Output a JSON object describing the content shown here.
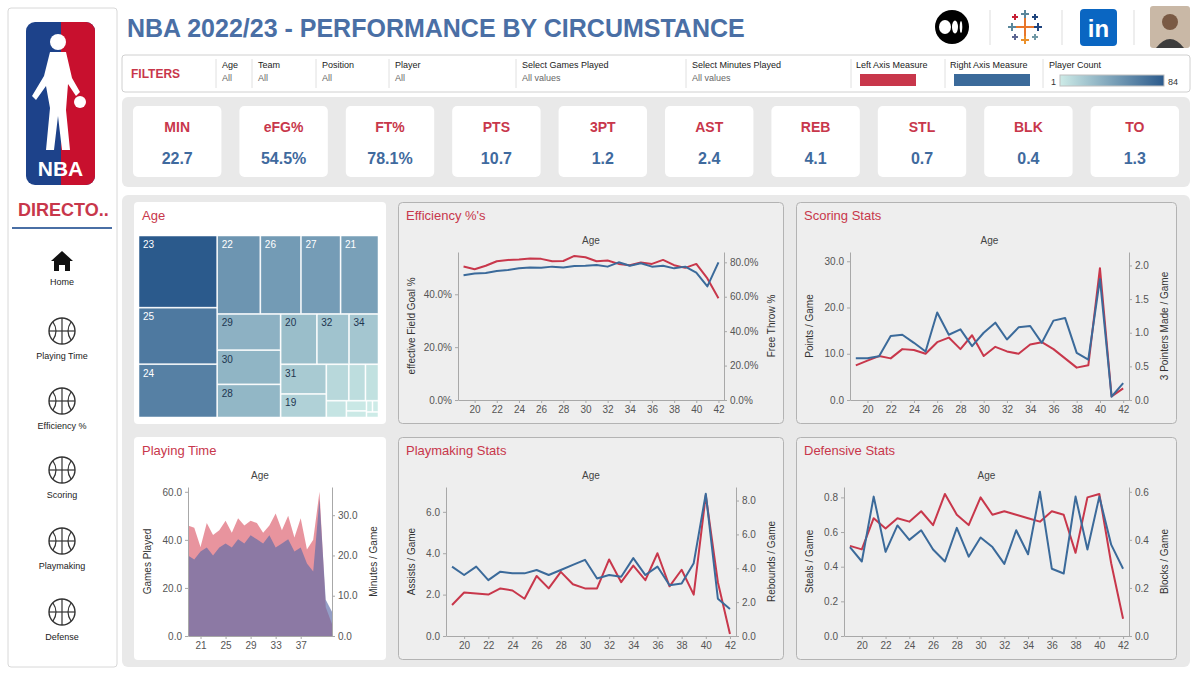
{
  "header": {
    "title": "NBA 2022/23 - PERFORMANCE BY CIRCUMSTANCE",
    "logo_text": "NBA",
    "linkedin": "in"
  },
  "sidebar": {
    "title": "DIRECTO..",
    "items": [
      "Home",
      "Playing Time",
      "Efficiency %",
      "Scoring",
      "Playmaking",
      "Defense"
    ]
  },
  "filters": {
    "label": "FILTERS",
    "items": [
      {
        "name": "Age",
        "value": "All"
      },
      {
        "name": "Team",
        "value": "All"
      },
      {
        "name": "Position",
        "value": "All"
      },
      {
        "name": "Player",
        "value": "All"
      },
      {
        "name": "Select Games Played",
        "value": "All values"
      },
      {
        "name": "Select Minutes Played",
        "value": "All values"
      }
    ],
    "measures": [
      {
        "name": "Left Axis Measure",
        "color": "#c8374b"
      },
      {
        "name": "Right Axis Measure",
        "color": "#3b6a9a"
      }
    ],
    "player_count": {
      "name": "Player Count",
      "range": [
        1,
        84
      ],
      "colors": [
        "#cdebe7",
        "#2b5a8c"
      ]
    }
  },
  "kpis": [
    {
      "label": "MIN",
      "value": "22.7"
    },
    {
      "label": "eFG%",
      "value": "54.5%"
    },
    {
      "label": "FT%",
      "value": "78.1%"
    },
    {
      "label": "PTS",
      "value": "10.7"
    },
    {
      "label": "3PT",
      "value": "1.2"
    },
    {
      "label": "AST",
      "value": "2.4"
    },
    {
      "label": "REB",
      "value": "4.1"
    },
    {
      "label": "STL",
      "value": "0.7"
    },
    {
      "label": "BLK",
      "value": "0.4"
    },
    {
      "label": "TO",
      "value": "1.3"
    }
  ],
  "chart_data": [
    {
      "type": "treemap",
      "title": "Age",
      "categories": [
        "23",
        "25",
        "24",
        "22",
        "26",
        "27",
        "21",
        "29",
        "30",
        "28",
        "20",
        "32",
        "34",
        "31",
        "19",
        null,
        null,
        null,
        null,
        null,
        null,
        null,
        null,
        null
      ],
      "values": [
        84,
        66,
        62,
        50,
        47,
        46,
        44,
        34,
        32,
        31,
        27,
        24,
        22,
        20,
        16,
        12,
        9,
        7,
        5,
        3,
        2,
        1,
        1,
        1
      ]
    },
    {
      "type": "line",
      "title": "Efficiency %'s",
      "x_label": "Age",
      "x": [
        19,
        20,
        21,
        22,
        23,
        24,
        25,
        26,
        27,
        28,
        29,
        30,
        31,
        32,
        33,
        34,
        35,
        36,
        37,
        38,
        39,
        40,
        41,
        42
      ],
      "xlim": [
        18.5,
        42.5
      ],
      "xticks": [
        20,
        22,
        24,
        26,
        28,
        30,
        32,
        34,
        36,
        38,
        40,
        42
      ],
      "ylim": [
        0,
        56
      ],
      "yticks": [
        {
          "value": 0,
          "label": "0.0%"
        },
        {
          "value": 20,
          "label": "20.0%"
        },
        {
          "value": 40,
          "label": "40.0%"
        }
      ],
      "y2lim": [
        0,
        86
      ],
      "y2ticks": [
        {
          "value": 0,
          "label": "0.0%"
        },
        {
          "value": 20,
          "label": "20.0%"
        },
        {
          "value": 40,
          "label": "40.0%"
        },
        {
          "value": 60,
          "label": "60.0%"
        },
        {
          "value": 80,
          "label": "80.0%"
        }
      ],
      "series": [
        {
          "name": "effective Field Goal %",
          "color": "#c8374b",
          "values": [
            50.5,
            49.5,
            50.8,
            52.5,
            53.0,
            53.2,
            53.5,
            53.4,
            52.5,
            52.6,
            54.5,
            54.0,
            52.5,
            52.8,
            51.5,
            51.0,
            52.0,
            51.5,
            53.0,
            51.0,
            50.0,
            51.5,
            46.0,
            38.5
          ]
        },
        {
          "name": "Free Throw %",
          "color": "#3b6a9a",
          "axis": "y2",
          "values": [
            72.5,
            73.5,
            73.8,
            75.0,
            75.5,
            76.5,
            77.0,
            76.8,
            77.5,
            77.0,
            77.8,
            78.0,
            78.5,
            77.5,
            80.0,
            78.0,
            79.5,
            77.5,
            78.0,
            76.5,
            77.5,
            74.0,
            66.0,
            80.0
          ]
        }
      ]
    },
    {
      "type": "line",
      "title": "Scoring Stats",
      "x_label": "Age",
      "x": [
        19,
        20,
        21,
        22,
        23,
        24,
        25,
        26,
        27,
        28,
        29,
        30,
        31,
        32,
        33,
        34,
        35,
        36,
        37,
        38,
        39,
        40,
        41,
        42
      ],
      "xlim": [
        18.5,
        42.5
      ],
      "xticks": [
        20,
        22,
        24,
        26,
        28,
        30,
        32,
        34,
        36,
        38,
        40,
        42
      ],
      "ylim": [
        0,
        32
      ],
      "yticks": [
        {
          "value": 0,
          "label": "0.0"
        },
        {
          "value": 10,
          "label": "10.0"
        },
        {
          "value": 20,
          "label": "20.0"
        },
        {
          "value": 30,
          "label": "30.0"
        }
      ],
      "y2lim": [
        0,
        2.2
      ],
      "y2ticks": [
        {
          "value": 0,
          "label": "0.0"
        },
        0.5,
        {
          "value": 1,
          "label": "1.0"
        },
        1.5,
        {
          "value": 2,
          "label": "2.0"
        }
      ],
      "series": [
        {
          "name": "Points / Game",
          "color": "#c8374b",
          "values": [
            7.5,
            8.5,
            9.5,
            9.0,
            11.0,
            10.8,
            10.0,
            12.5,
            13.5,
            11.0,
            14.0,
            9.5,
            11.5,
            10.5,
            10.0,
            12.0,
            12.5,
            11.0,
            9.0,
            7.0,
            7.5,
            28.5,
            0.8,
            2.5
          ]
        },
        {
          "name": "3 Pointers Made / Game",
          "color": "#3b6a9a",
          "axis": "y2",
          "values": [
            0.62,
            0.62,
            0.65,
            0.95,
            0.97,
            0.85,
            0.72,
            1.3,
            0.97,
            1.05,
            0.8,
            1.0,
            1.15,
            0.9,
            1.08,
            1.1,
            0.85,
            1.18,
            1.22,
            0.7,
            0.6,
            1.8,
            0.05,
            0.25
          ]
        }
      ]
    },
    {
      "type": "area",
      "title": "Playing Time",
      "x_label": "Age",
      "x": [
        19,
        20,
        21,
        22,
        23,
        24,
        25,
        26,
        27,
        28,
        29,
        30,
        31,
        32,
        33,
        34,
        35,
        36,
        37,
        38,
        39,
        40,
        41,
        42
      ],
      "xlim": [
        19,
        42
      ],
      "xticks": [
        21,
        25,
        29,
        33,
        37
      ],
      "ylim": [
        0,
        62
      ],
      "yticks": [
        {
          "value": 0,
          "label": "0.0"
        },
        {
          "value": 20,
          "label": "20.0"
        },
        {
          "value": 40,
          "label": "40.0"
        },
        {
          "value": 60,
          "label": "60.0"
        }
      ],
      "y2lim": [
        0,
        37
      ],
      "y2ticks": [
        {
          "value": 0,
          "label": "0.0"
        },
        {
          "value": 10,
          "label": "10.0"
        },
        {
          "value": 20,
          "label": "20.0"
        },
        {
          "value": 30,
          "label": "30.0"
        }
      ],
      "series": [
        {
          "name": "Games Played",
          "color": "#e0707e",
          "values": [
            46,
            45,
            37,
            47,
            42,
            44,
            48,
            43,
            49,
            46,
            48,
            47,
            43,
            46,
            51,
            44,
            50,
            41,
            49,
            36,
            40,
            60,
            12,
            5
          ]
        },
        {
          "name": "Minutes / Game",
          "color": "#5a6aa8",
          "axis": "y2",
          "values": [
            20,
            19,
            21,
            22,
            20,
            22,
            23,
            22,
            24,
            23,
            25,
            24,
            23,
            25,
            22,
            23,
            24,
            21,
            22,
            18,
            16,
            34,
            9,
            6
          ]
        }
      ]
    },
    {
      "type": "line",
      "title": "Playmaking Stats",
      "x_label": "Age",
      "x": [
        19,
        20,
        21,
        22,
        23,
        24,
        25,
        26,
        27,
        28,
        29,
        30,
        31,
        32,
        33,
        34,
        35,
        36,
        37,
        38,
        39,
        40,
        41,
        42
      ],
      "xlim": [
        18.5,
        42.5
      ],
      "xticks": [
        20,
        22,
        24,
        26,
        28,
        30,
        32,
        34,
        36,
        38,
        40,
        42
      ],
      "ylim": [
        0,
        7.2
      ],
      "yticks": [
        {
          "value": 0,
          "label": "0.0"
        },
        {
          "value": 2,
          "label": "2.0"
        },
        {
          "value": 4,
          "label": "4.0"
        },
        {
          "value": 6,
          "label": "6.0"
        }
      ],
      "y2lim": [
        0,
        8.8
      ],
      "y2ticks": [
        {
          "value": 0,
          "label": "0.0"
        },
        {
          "value": 2,
          "label": "2.0"
        },
        {
          "value": 4,
          "label": "4.0"
        },
        {
          "value": 6,
          "label": "6.0"
        },
        {
          "value": 8,
          "label": "8.0"
        }
      ],
      "series": [
        {
          "name": "Assists / Game",
          "color": "#c8374b",
          "values": [
            1.5,
            2.1,
            2.05,
            2.0,
            2.3,
            2.2,
            1.8,
            2.9,
            2.3,
            3.1,
            2.5,
            2.3,
            2.3,
            3.7,
            2.6,
            3.4,
            2.7,
            4.0,
            2.4,
            3.2,
            2.0,
            6.8,
            2.6,
            0.1
          ]
        },
        {
          "name": "Rebounds / Game",
          "color": "#3b6a9a",
          "axis": "y2",
          "values": [
            4.1,
            3.6,
            4.1,
            3.3,
            3.8,
            3.7,
            3.7,
            3.9,
            3.6,
            3.9,
            4.2,
            4.5,
            3.4,
            3.6,
            3.5,
            4.6,
            3.6,
            4.1,
            3.0,
            3.1,
            4.3,
            8.4,
            2.2,
            1.6
          ]
        }
      ]
    },
    {
      "type": "line",
      "title": "Defensive Stats",
      "x_label": "Age",
      "x": [
        19,
        20,
        21,
        22,
        23,
        24,
        25,
        26,
        27,
        28,
        29,
        30,
        31,
        32,
        33,
        34,
        35,
        36,
        37,
        38,
        39,
        40,
        41,
        42
      ],
      "xlim": [
        18.5,
        42.5
      ],
      "xticks": [
        20,
        22,
        24,
        26,
        28,
        30,
        32,
        34,
        36,
        38,
        40,
        42
      ],
      "ylim": [
        0,
        0.86
      ],
      "yticks": [
        {
          "value": 0,
          "label": "0.0"
        },
        0.2,
        0.4,
        0.6,
        0.8
      ],
      "y2lim": [
        0,
        0.62
      ],
      "y2ticks": [
        {
          "value": 0,
          "label": "0.0"
        },
        0.2,
        0.4,
        0.6
      ],
      "series": [
        {
          "name": "Steals / Game",
          "color": "#c8374b",
          "values": [
            0.52,
            0.5,
            0.68,
            0.62,
            0.68,
            0.66,
            0.72,
            0.64,
            0.82,
            0.7,
            0.64,
            0.8,
            0.7,
            0.72,
            0.7,
            0.68,
            0.66,
            0.72,
            0.7,
            0.48,
            0.8,
            0.82,
            0.42,
            0.1
          ]
        },
        {
          "name": "Blocks / Game",
          "color": "#3b6a9a",
          "axis": "y2",
          "values": [
            0.37,
            0.31,
            0.58,
            0.35,
            0.46,
            0.4,
            0.44,
            0.36,
            0.31,
            0.45,
            0.33,
            0.41,
            0.37,
            0.3,
            0.44,
            0.34,
            0.6,
            0.28,
            0.26,
            0.58,
            0.36,
            0.58,
            0.38,
            0.28
          ]
        }
      ]
    }
  ]
}
